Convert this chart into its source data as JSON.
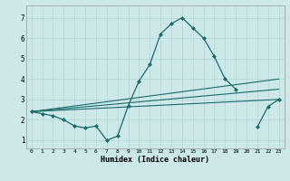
{
  "xlabel": "Humidex (Indice chaleur)",
  "background_color": "#cce8e8",
  "grid_color": "#b8d8d8",
  "line_color": "#1a6b6b",
  "xlim": [
    -0.5,
    23.5
  ],
  "ylim": [
    0.6,
    7.6
  ],
  "xticks": [
    0,
    1,
    2,
    3,
    4,
    5,
    6,
    7,
    8,
    9,
    10,
    11,
    12,
    13,
    14,
    15,
    16,
    17,
    18,
    19,
    20,
    21,
    22,
    23
  ],
  "yticks": [
    1,
    2,
    3,
    4,
    5,
    6,
    7
  ],
  "series_main": {
    "x": [
      0,
      1,
      2,
      3,
      4,
      5,
      6,
      7,
      8,
      9,
      10,
      11,
      12,
      13,
      14,
      15,
      16,
      17,
      18,
      19,
      21,
      22,
      23
    ],
    "y": [
      2.4,
      2.3,
      2.2,
      2.0,
      1.7,
      1.6,
      1.7,
      1.0,
      1.2,
      2.7,
      3.9,
      4.7,
      6.2,
      6.7,
      7.0,
      6.5,
      6.0,
      5.1,
      4.0,
      3.5,
      1.65,
      2.65,
      3.0
    ]
  },
  "linear_lines": [
    {
      "x": [
        0,
        23
      ],
      "y": [
        2.4,
        4.0
      ]
    },
    {
      "x": [
        0,
        23
      ],
      "y": [
        2.4,
        3.5
      ]
    },
    {
      "x": [
        0,
        23
      ],
      "y": [
        2.4,
        3.0
      ]
    }
  ]
}
